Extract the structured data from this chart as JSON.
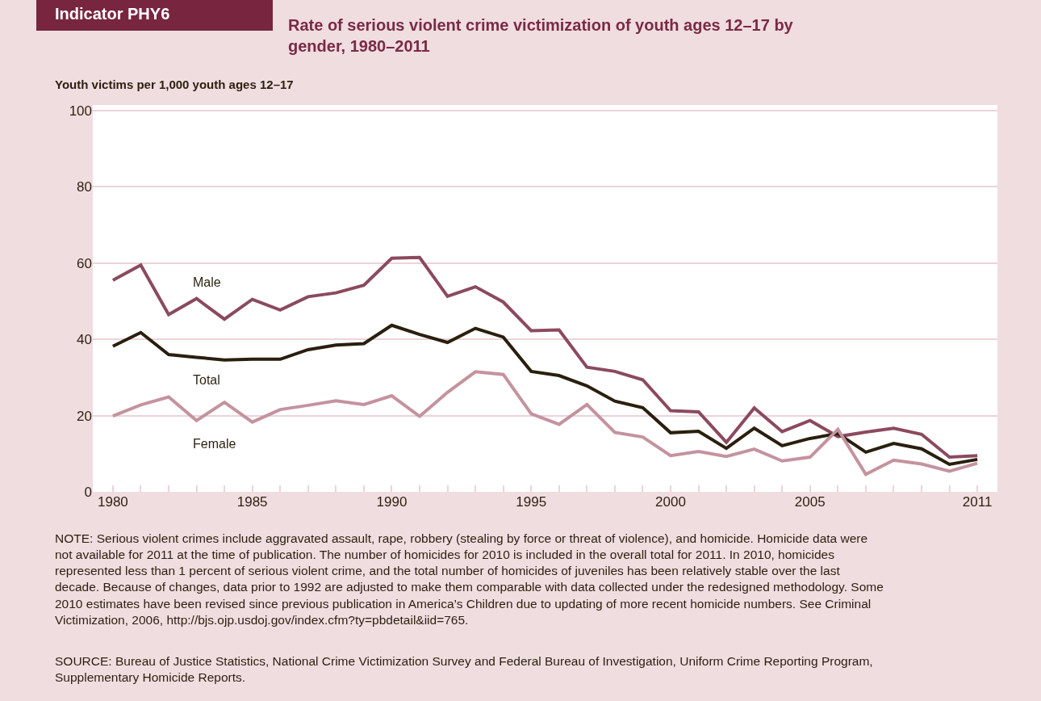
{
  "chart_data": {
    "type": "line",
    "title": "Rate of serious violent crime victimization of youth ages 12–17 by gender, 1980–2011",
    "ylabel": "Youth victims per 1,000 youth ages 12–17",
    "annotations": [
      "Indicator PHY6",
      "NOTE: Serious violent crimes include aggravated assault, rape, robbery (stealing by force or threat of violence), and homicide. Homicide data were not available for 2011 at the time of publication. The number of homicides for 2010 is included in the overall total for 2011. In 2010, homicides represented less than 1 percent of serious violent crime, and the total number of homicides of juveniles has been relatively stable over the last decade. Because of changes, data prior to 1992 are adjusted to make them comparable with data collected under the redesigned methodology. Some 2010 estimates have been revised since previous publication in America’s Children due to updating of more recent homicide numbers. See Criminal Victimization, 2006, http://bjs.ojp.usdoj.gov/index.cfm?ty=pbdetail&iid=765.",
      "SOURCE: Bureau of Justice Statistics, National Crime Victimization Survey and Federal Bureau of Investigation, Uniform Crime Reporting Program, Supplementary Homicide Reports."
    ],
    "x": [
      1980,
      1981,
      1982,
      1983,
      1984,
      1985,
      1986,
      1987,
      1988,
      1989,
      1990,
      1991,
      1992,
      1993,
      1994,
      1995,
      1996,
      1997,
      1998,
      1999,
      2000,
      2001,
      2002,
      2003,
      2004,
      2005,
      2006,
      2007,
      2008,
      2009,
      2010,
      2011
    ],
    "series": [
      {
        "name": "Male",
        "color": "#8b4a5e",
        "values": [
          55.5,
          59.5,
          46.5,
          50.7,
          45.3,
          50.5,
          47.7,
          51.2,
          52.2,
          54.2,
          61.3,
          61.5,
          51.3,
          53.8,
          49.8,
          42.3,
          42.5,
          32.7,
          31.6,
          29.4,
          21.3,
          21.0,
          13.0,
          22.0,
          15.8,
          18.7,
          14.5,
          15.7,
          16.7,
          15.1,
          9.1,
          9.5
        ]
      },
      {
        "name": "Total",
        "color": "#2a1f0e",
        "values": [
          38.2,
          41.8,
          36.0,
          35.3,
          34.6,
          34.8,
          34.8,
          37.3,
          38.5,
          38.9,
          43.7,
          41.3,
          39.2,
          42.9,
          40.6,
          31.6,
          30.5,
          27.8,
          23.8,
          22.1,
          15.5,
          15.9,
          11.4,
          16.7,
          12.1,
          14.0,
          15.3,
          10.4,
          12.7,
          11.3,
          7.2,
          8.5
        ]
      },
      {
        "name": "Female",
        "color": "#c4939e",
        "values": [
          19.9,
          22.8,
          24.9,
          18.7,
          23.5,
          18.3,
          21.6,
          22.7,
          23.9,
          22.9,
          25.2,
          19.8,
          26.1,
          31.5,
          30.8,
          20.5,
          17.7,
          22.9,
          15.6,
          14.4,
          9.5,
          10.6,
          9.3,
          11.2,
          8.1,
          9.1,
          16.4,
          4.6,
          8.3,
          7.3,
          5.4,
          7.5
        ]
      }
    ],
    "xlim": [
      1979.28,
      2011.72
    ],
    "xticks": [
      1980,
      {
        "value": 1981,
        "label": null
      },
      {
        "value": 1982,
        "label": null
      },
      {
        "value": 1983,
        "label": null
      },
      {
        "value": 1984,
        "label": null
      },
      1985,
      {
        "value": 1986,
        "label": null
      },
      {
        "value": 1987,
        "label": null
      },
      {
        "value": 1988,
        "label": null
      },
      {
        "value": 1989,
        "label": null
      },
      1990,
      {
        "value": 1991,
        "label": null
      },
      {
        "value": 1992,
        "label": null
      },
      {
        "value": 1993,
        "label": null
      },
      {
        "value": 1994,
        "label": null
      },
      1995,
      {
        "value": 1996,
        "label": null
      },
      {
        "value": 1997,
        "label": null
      },
      {
        "value": 1998,
        "label": null
      },
      {
        "value": 1999,
        "label": null
      },
      2000,
      {
        "value": 2001,
        "label": null
      },
      {
        "value": 2002,
        "label": null
      },
      {
        "value": 2003,
        "label": null
      },
      {
        "value": 2004,
        "label": null
      },
      2005,
      {
        "value": 2006,
        "label": null
      },
      {
        "value": 2007,
        "label": null
      },
      {
        "value": 2008,
        "label": null
      },
      {
        "value": 2009,
        "label": null
      },
      {
        "value": 2010,
        "label": null
      },
      2011
    ],
    "ylim": [
      0,
      101.5
    ],
    "yticks": [
      0,
      20,
      40,
      60,
      80,
      100
    ],
    "grid": "y",
    "legend": false,
    "line_style": "solid"
  }
}
